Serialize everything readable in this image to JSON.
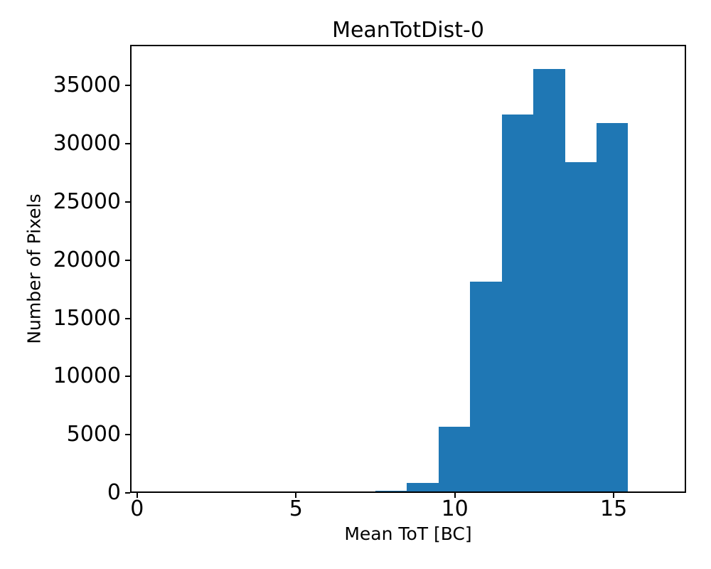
{
  "chart_data": {
    "type": "bar",
    "subtype": "histogram",
    "title": "MeanTotDist-0",
    "xlabel": "Mean ToT [BC]",
    "ylabel": "Number of Pixels",
    "bar_color": "#1f77b4",
    "axis_color": "#000000",
    "background_color": "#ffffff",
    "bin_edges": [
      7.5,
      8.49,
      9.49,
      10.48,
      11.48,
      12.47,
      13.47,
      14.46,
      15.45
    ],
    "counts": [
      180,
      850,
      5700,
      18150,
      32500,
      36400,
      28450,
      31800
    ],
    "xlim": [
      -0.22,
      17.28
    ],
    "ylim": [
      0,
      38500
    ],
    "xticks": [
      0,
      5,
      10,
      15
    ],
    "yticks": [
      0,
      5000,
      10000,
      15000,
      20000,
      25000,
      30000,
      35000
    ],
    "grid": false,
    "legend": null
  }
}
